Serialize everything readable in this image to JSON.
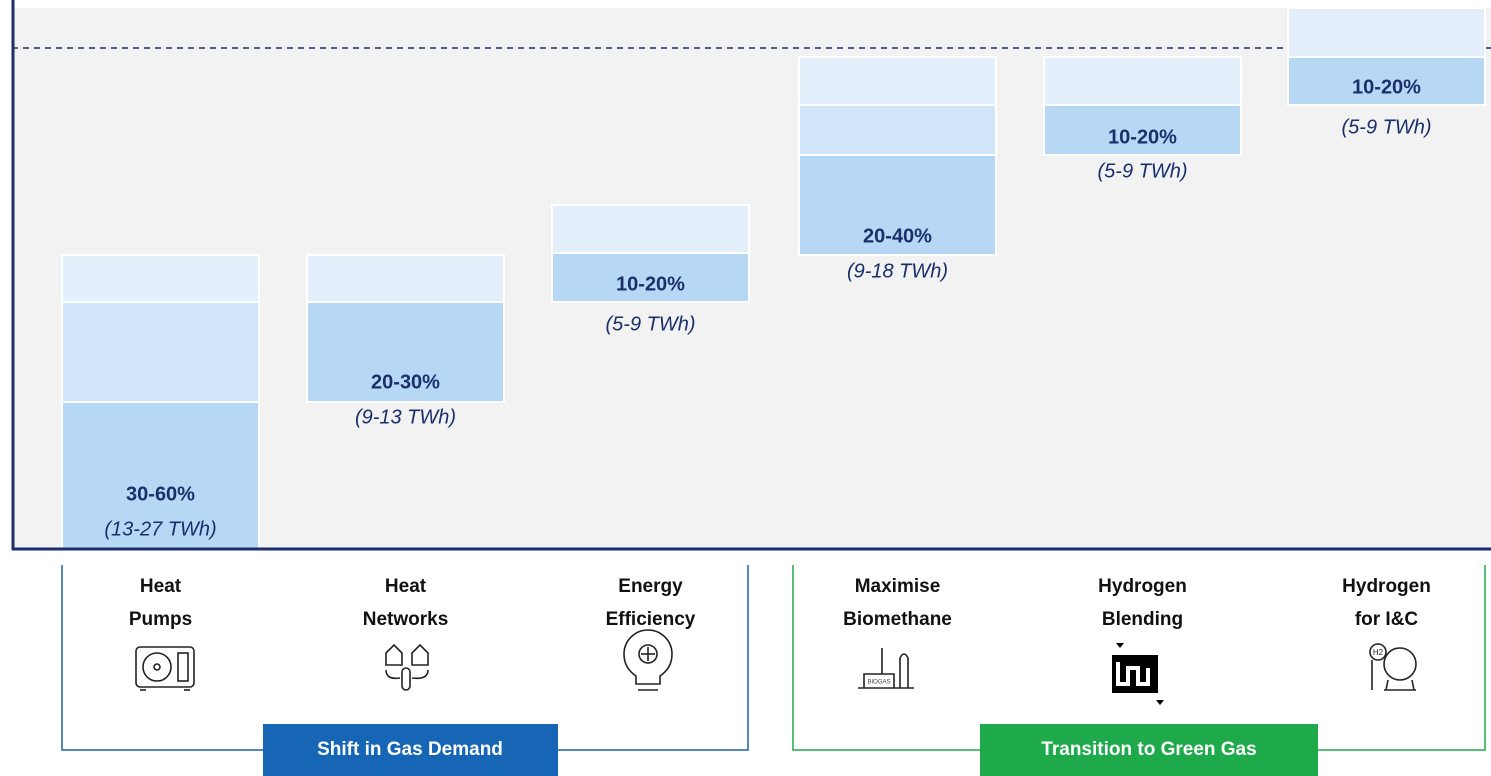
{
  "columns": [
    {
      "label": [
        "Heat",
        "Pumps"
      ],
      "share": "30-60%",
      "energy": "(13-27 TWh)"
    },
    {
      "label": [
        "Heat",
        "Networks"
      ],
      "share": "20-30%",
      "energy": "(9-13 TWh)"
    },
    {
      "label": [
        "Energy",
        "Efficiency"
      ],
      "share": "10-20%",
      "energy": "(5-9 TWh)"
    },
    {
      "label": [
        "Maximise",
        "Biomethane"
      ],
      "share": "20-40%",
      "energy": "(9-18 TWh)"
    },
    {
      "label": [
        "Hydrogen",
        "Blending"
      ],
      "share": "10-20%",
      "energy": "(5-9 TWh)"
    },
    {
      "label": [
        "Hydrogen",
        "for I&C"
      ],
      "share": "10-20%",
      "energy": "(5-9 TWh)"
    }
  ],
  "groups": [
    {
      "name": "Shift in Gas Demand"
    },
    {
      "name": "Transition to Green Gas"
    }
  ]
}
